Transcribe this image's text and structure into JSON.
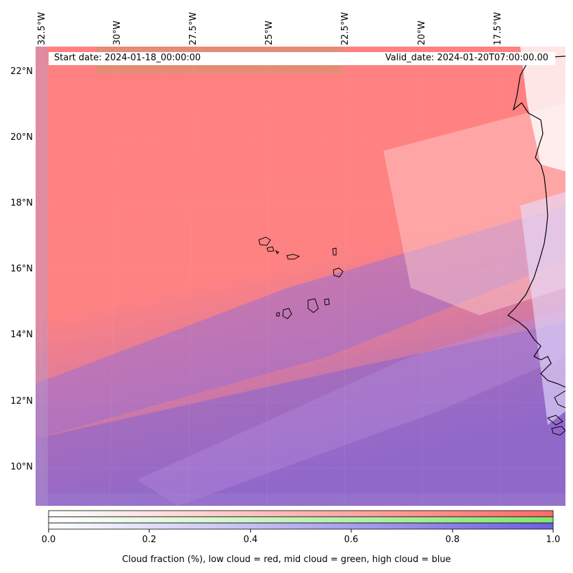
{
  "map": {
    "longitude_labels": [
      "32.5°W",
      "30°W",
      "27.5°W",
      "25°W",
      "22.5°W",
      "20°W",
      "17.5°W"
    ],
    "latitude_labels": [
      "22°N",
      "20°N",
      "18°N",
      "16°N",
      "14°N",
      "12°N",
      "10°N"
    ],
    "start_date": "Start date: 2024-01-18_00:00:00",
    "valid_date": "Valid_date: 2024-01-20T07:00:00.00",
    "colors": {
      "low_cloud": "#ff7f7f",
      "mid_cloud": "#86e27a",
      "high_cloud": "#7a66d6",
      "coastline": "#000000"
    }
  },
  "colorbar": {
    "ticks": [
      "0.0",
      "0.2",
      "0.4",
      "0.6",
      "0.8",
      "1.0"
    ],
    "label": "Cloud fraction (%), low cloud = red, mid cloud = green, high cloud = blue"
  }
}
